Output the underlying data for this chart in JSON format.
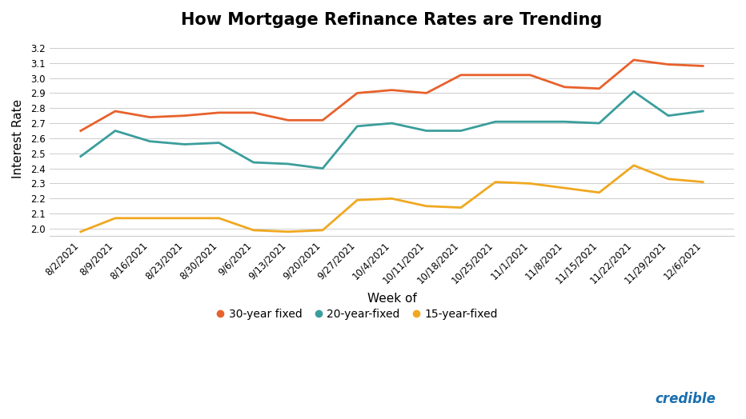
{
  "title": "How Mortgage Refinance Rates are Trending",
  "xlabel": "Week of",
  "ylabel": "Interest Rate",
  "background_color": "#ffffff",
  "grid_color": "#cccccc",
  "ylim": [
    1.95,
    3.25
  ],
  "yticks": [
    2.0,
    2.1,
    2.2,
    2.3,
    2.4,
    2.5,
    2.6,
    2.7,
    2.8,
    2.9,
    3.0,
    3.1,
    3.2
  ],
  "weeks": [
    "8/2/2021",
    "8/9/2021",
    "8/16/2021",
    "8/23/2021",
    "8/30/2021",
    "9/6/2021",
    "9/13/2021",
    "9/20/2021",
    "9/27/2021",
    "10/4/2021",
    "10/11/2021",
    "10/18/2021",
    "10/25/2021",
    "11/1/2021",
    "11/8/2021",
    "11/15/2021",
    "11/22/2021",
    "11/29/2021",
    "12/6/2021"
  ],
  "series_30yr": [
    2.65,
    2.78,
    2.74,
    2.75,
    2.77,
    2.77,
    2.72,
    2.72,
    2.9,
    2.92,
    2.9,
    3.02,
    3.02,
    3.02,
    2.94,
    2.93,
    3.12,
    3.09,
    3.08
  ],
  "series_20yr": [
    2.48,
    2.65,
    2.58,
    2.56,
    2.57,
    2.44,
    2.43,
    2.4,
    2.68,
    2.7,
    2.65,
    2.65,
    2.71,
    2.71,
    2.71,
    2.7,
    2.91,
    2.75,
    2.78
  ],
  "series_15yr": [
    1.98,
    2.07,
    2.07,
    2.07,
    2.07,
    1.99,
    1.98,
    1.99,
    2.19,
    2.2,
    2.15,
    2.14,
    2.31,
    2.3,
    2.27,
    2.24,
    2.42,
    2.33,
    2.31
  ],
  "color_30yr": "#E8612C",
  "color_20yr": "#3A9E9C",
  "color_15yr": "#F0A820",
  "legend_labels": [
    "30-year fixed",
    "20-year-fixed",
    "15-year-fixed"
  ],
  "title_fontsize": 15,
  "axis_label_fontsize": 11,
  "tick_fontsize": 8.5,
  "legend_fontsize": 10,
  "credible_color": "#1a6faf",
  "line_width": 2.0
}
